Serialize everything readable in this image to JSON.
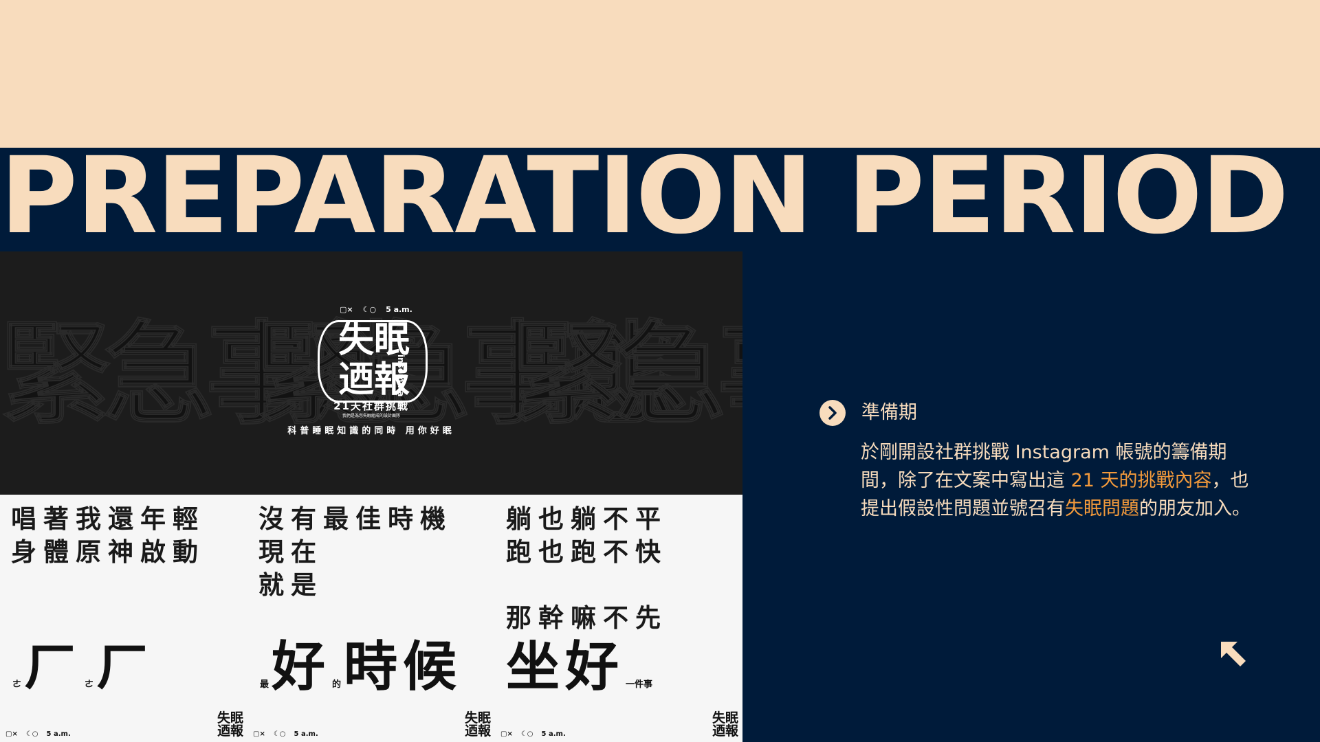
{
  "hero": {
    "title": "PREPARATION PERIOD"
  },
  "colors": {
    "cream": "#f8dcbd",
    "navy": "#001b3a",
    "orange": "#f39a3b",
    "panel_dark": "#1c1c1c",
    "panel_light": "#f6f6f6"
  },
  "cover": {
    "ghost_words": [
      "緊急事態",
      "緊急事態",
      "緊急事態"
    ],
    "status": {
      "icon_a": "▢×",
      "icon_b": "☾○",
      "time": "5 a.m."
    },
    "logo_line1": "失眠",
    "logo_line2": "迺報",
    "logo_side": "insomnia",
    "subtitle": "21天社群挑戰",
    "fine_print": "我們是為您失眠組成的設計團隊",
    "tagline": "科普睡眠知識的同時 用你好眠"
  },
  "posts": [
    {
      "lines": [
        "唱著我還年輕",
        "身體原神啟動"
      ],
      "big_row": [
        {
          "t": "ㄜ",
          "s": "small"
        },
        {
          "t": "ㄏ",
          "s": "big"
        },
        {
          "t": "ㄜ",
          "s": "small"
        },
        {
          "t": "ㄏ",
          "s": "big"
        }
      ],
      "footer": {
        "status_a": "▢×",
        "status_b": "☾○",
        "time": "5 a.m.",
        "logo_line1": "失眠",
        "logo_line2": "迺報"
      }
    },
    {
      "lines": [
        "沒有最佳時機",
        "現在",
        "就是"
      ],
      "big_row": [
        {
          "t": "最",
          "s": "small"
        },
        {
          "t": "好",
          "s": "big"
        },
        {
          "t": "的",
          "s": "small"
        },
        {
          "t": "時候",
          "s": "big"
        }
      ],
      "footer": {
        "status_a": "▢×",
        "status_b": "☾○",
        "time": "5 a.m.",
        "logo_line1": "失眠",
        "logo_line2": "迺報"
      }
    },
    {
      "lines": [
        "躺也躺不平",
        "跑也跑不快",
        "",
        "那幹嘛不先"
      ],
      "big_row": [
        {
          "t": "坐好",
          "s": "big"
        },
        {
          "t": "一件事",
          "s": "small"
        }
      ],
      "footer": {
        "status_a": "▢×",
        "status_b": "☾○",
        "time": "5 a.m.",
        "logo_line1": "失眠",
        "logo_line2": "迺報"
      }
    }
  ],
  "section": {
    "icon": "chevron-right-icon",
    "title": "準備期",
    "body_1": "於剛開設社群挑戰 Instagram 帳號的籌備期間，除了在文案中寫出這 ",
    "highlight_1": "21 天的挑戰內容",
    "body_2": "，也提出假設性問題並號召有",
    "highlight_2": "失眠問題",
    "body_3": "的朋友加入。",
    "corner_icon": "arrow-up-left-icon"
  }
}
